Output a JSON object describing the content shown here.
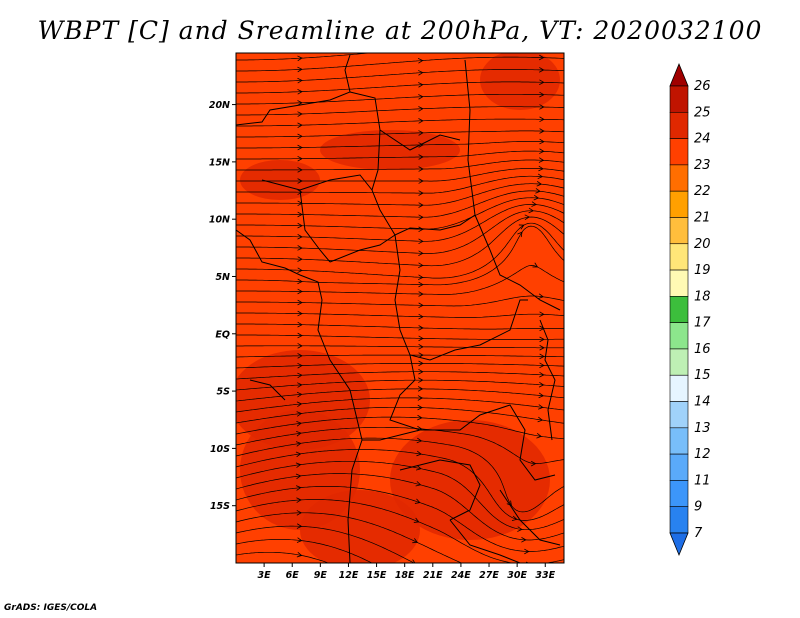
{
  "title": "WBPT [C] and Sreamline at 200hPa, VT: 2020032100",
  "credit": "GrADS: IGES/COLA",
  "map": {
    "lat_labels": [
      "20N",
      "15N",
      "10N",
      "5N",
      "EQ",
      "5S",
      "10S",
      "15S"
    ],
    "lat_values": [
      20,
      15,
      10,
      5,
      0,
      -5,
      -10,
      -15
    ],
    "lon_labels": [
      "3E",
      "6E",
      "9E",
      "12E",
      "15E",
      "18E",
      "21E",
      "24E",
      "27E",
      "30E",
      "33E"
    ],
    "lon_values": [
      3,
      6,
      9,
      12,
      15,
      18,
      21,
      24,
      27,
      30,
      33
    ],
    "lon_range": [
      0,
      35
    ],
    "lat_range": [
      -20,
      24.5
    ],
    "base_color": "#ff4000",
    "dark_color": "#e02800"
  },
  "colorbar": {
    "labels": [
      "7",
      "9",
      "11",
      "12",
      "13",
      "14",
      "15",
      "16",
      "17",
      "18",
      "19",
      "20",
      "21",
      "22",
      "23",
      "24",
      "25",
      "26"
    ],
    "colors": [
      "#1e6ee6",
      "#2882f0",
      "#3c96fa",
      "#5aaafa",
      "#78befa",
      "#a0d2fa",
      "#e6f5ff",
      "#bef0b4",
      "#8ce68c",
      "#3cbe3c",
      "#fffab4",
      "#ffe678",
      "#ffbe3c",
      "#ffa000",
      "#ff6e00",
      "#ff4000",
      "#e02800",
      "#c01400",
      "#a00000"
    ]
  }
}
